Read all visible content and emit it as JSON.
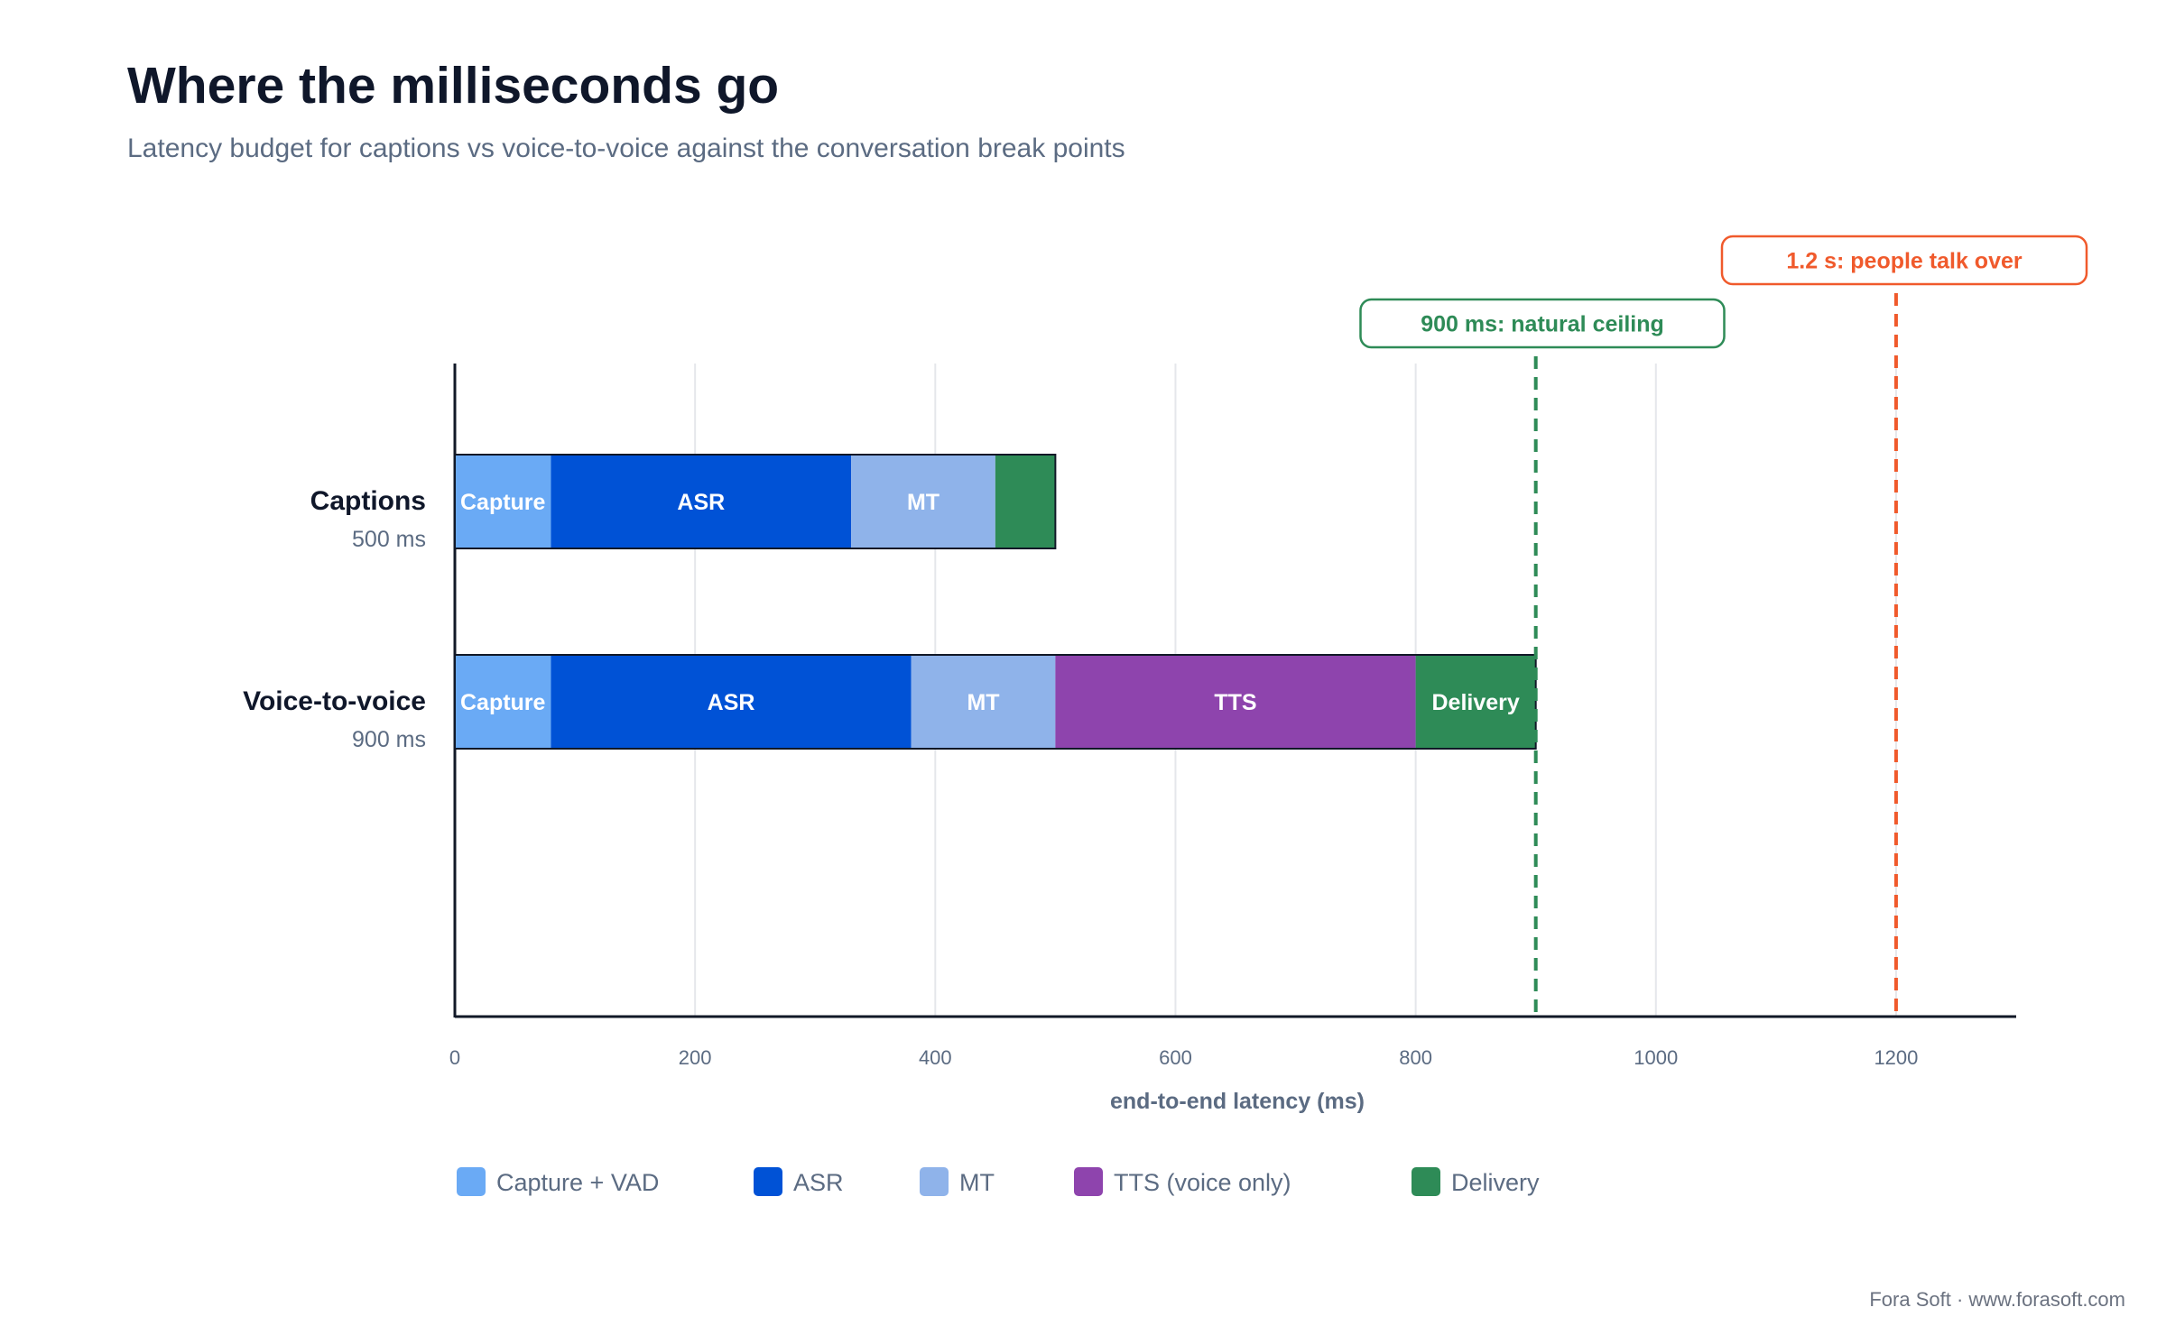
{
  "header": {
    "title": "Where the milliseconds go",
    "subtitle": "Latency budget for captions vs voice-to-voice against the conversation break points"
  },
  "footer": {
    "credit": "Fora Soft · www.forasoft.com"
  },
  "colors": {
    "capture": "#6aaaf5",
    "asr": "#0052d6",
    "mt": "#8fb3ea",
    "tts": "#8e44ad",
    "delivery": "#2e8b57",
    "ceiling": "#2e8b57",
    "talkover": "#f05a2c",
    "axis": "#111827",
    "grid": "#e5e7eb",
    "muted": "#5b6b82",
    "dark": "#0f172a"
  },
  "chart_data": {
    "type": "bar",
    "orientation": "horizontal",
    "stacked": true,
    "xlabel": "end-to-end latency (ms)",
    "xlim": [
      0,
      1300
    ],
    "xticks": [
      0,
      200,
      400,
      600,
      800,
      1000,
      1200
    ],
    "grid": true,
    "legend_position": "bottom",
    "legend": [
      {
        "key": "capture",
        "label": "Capture + VAD"
      },
      {
        "key": "asr",
        "label": "ASR"
      },
      {
        "key": "mt",
        "label": "MT"
      },
      {
        "key": "tts",
        "label": "TTS (voice only)"
      },
      {
        "key": "delivery",
        "label": "Delivery"
      }
    ],
    "rows": [
      {
        "label": "Captions",
        "total_label": "500 ms",
        "segments": [
          {
            "key": "capture",
            "start": 0,
            "end": 80,
            "label": "Capture"
          },
          {
            "key": "asr",
            "start": 80,
            "end": 330,
            "label": "ASR"
          },
          {
            "key": "mt",
            "start": 330,
            "end": 450,
            "label": "MT"
          },
          {
            "key": "delivery",
            "start": 450,
            "end": 500,
            "label": ""
          }
        ]
      },
      {
        "label": "Voice-to-voice",
        "total_label": "900 ms",
        "segments": [
          {
            "key": "capture",
            "start": 0,
            "end": 80,
            "label": "Capture"
          },
          {
            "key": "asr",
            "start": 80,
            "end": 380,
            "label": "ASR"
          },
          {
            "key": "mt",
            "start": 380,
            "end": 500,
            "label": "MT"
          },
          {
            "key": "tts",
            "start": 500,
            "end": 800,
            "label": "TTS"
          },
          {
            "key": "delivery",
            "start": 800,
            "end": 900,
            "label": "Delivery"
          }
        ]
      }
    ],
    "thresholds": [
      {
        "value": 900,
        "label": "900 ms: natural ceiling",
        "color_key": "ceiling"
      },
      {
        "value": 1200,
        "label": "1.2 s: people talk over",
        "color_key": "talkover"
      }
    ]
  }
}
